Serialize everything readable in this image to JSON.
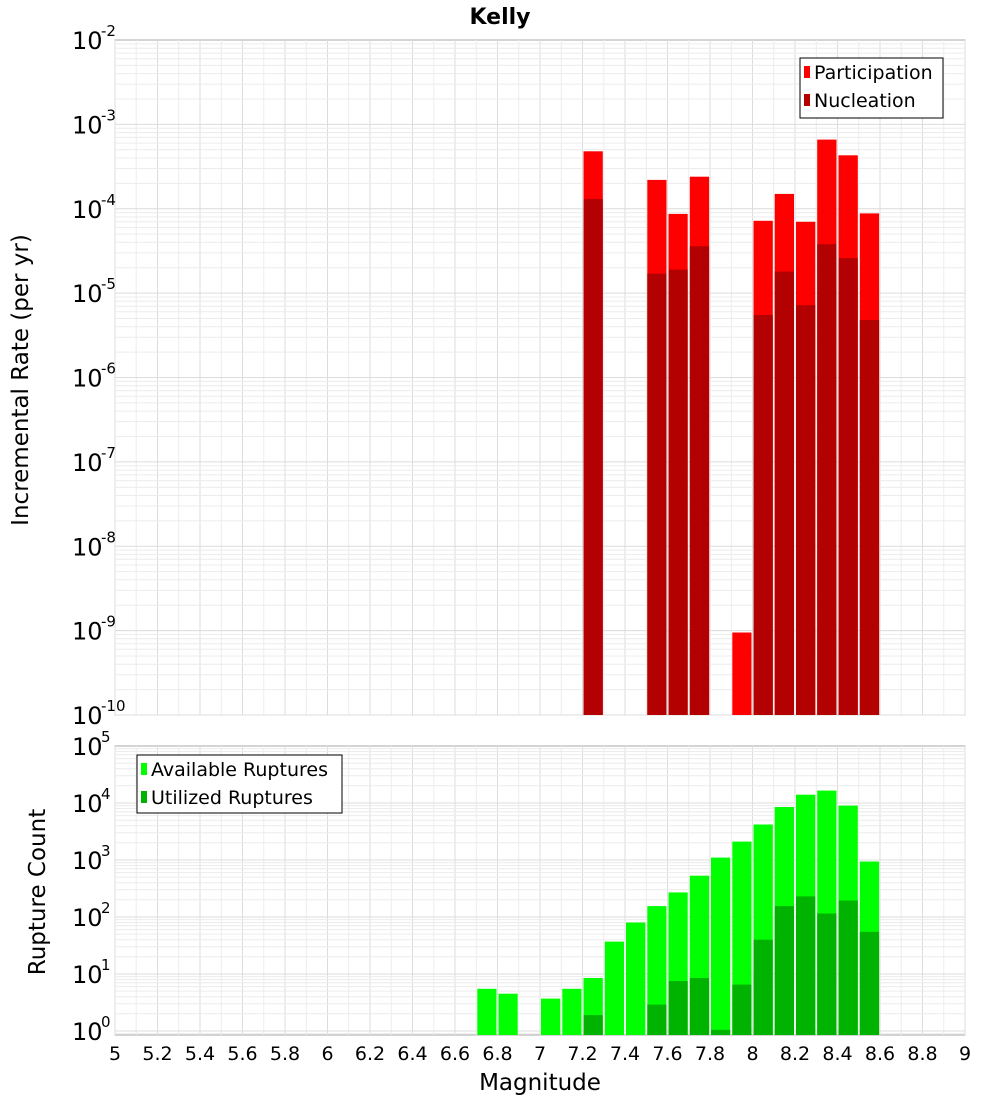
{
  "chart_data": [
    {
      "type": "bar",
      "title": "Kelly",
      "ylabel": "Incremental Rate (per yr)",
      "xlabel": "",
      "y_scale": "log",
      "ylim": [
        1e-10,
        0.01
      ],
      "xlim": [
        5,
        9
      ],
      "y_tick_exponents": [
        "-2",
        "-3",
        "-4",
        "-5",
        "-6",
        "-7",
        "-8",
        "-9",
        "-10"
      ],
      "bar_width": 0.1,
      "legend_position": "top-right",
      "series": [
        {
          "name": "Participation",
          "color": "#ff0000",
          "points": [
            {
              "x": 7.25,
              "y": 0.00048
            },
            {
              "x": 7.55,
              "y": 0.00022
            },
            {
              "x": 7.65,
              "y": 8.7e-05
            },
            {
              "x": 7.75,
              "y": 0.00024
            },
            {
              "x": 7.95,
              "y": 9.5e-10
            },
            {
              "x": 8.05,
              "y": 7.2e-05
            },
            {
              "x": 8.15,
              "y": 0.00015
            },
            {
              "x": 8.25,
              "y": 7e-05
            },
            {
              "x": 8.35,
              "y": 0.00066
            },
            {
              "x": 8.45,
              "y": 0.00043
            },
            {
              "x": 8.55,
              "y": 8.8e-05
            }
          ]
        },
        {
          "name": "Nucleation",
          "color": "#b30000",
          "points": [
            {
              "x": 7.25,
              "y": 0.00013
            },
            {
              "x": 7.55,
              "y": 1.7e-05
            },
            {
              "x": 7.65,
              "y": 1.9e-05
            },
            {
              "x": 7.75,
              "y": 3.6e-05
            },
            {
              "x": 8.05,
              "y": 5.5e-06
            },
            {
              "x": 8.15,
              "y": 1.8e-05
            },
            {
              "x": 8.25,
              "y": 7.2e-06
            },
            {
              "x": 8.35,
              "y": 3.8e-05
            },
            {
              "x": 8.45,
              "y": 2.6e-05
            },
            {
              "x": 8.55,
              "y": 4.8e-06
            }
          ]
        }
      ]
    },
    {
      "type": "bar",
      "title": "",
      "ylabel": "Rupture Count",
      "xlabel": "Magnitude",
      "y_scale": "log",
      "ylim": [
        0.85,
        100000
      ],
      "xlim": [
        5,
        9
      ],
      "y_tick_exponents": [
        "5",
        "4",
        "3",
        "2",
        "1",
        "0"
      ],
      "x_ticks": [
        "5",
        "5.2",
        "5.4",
        "5.6",
        "5.8",
        "6",
        "6.2",
        "6.4",
        "6.6",
        "6.8",
        "7",
        "7.2",
        "7.4",
        "7.6",
        "7.8",
        "8",
        "8.2",
        "8.4",
        "8.6",
        "8.8",
        "9"
      ],
      "bar_width": 0.1,
      "legend_position": "top-left",
      "series": [
        {
          "name": "Available Ruptures",
          "color": "#00ff00",
          "points": [
            {
              "x": 6.75,
              "y": 5.5
            },
            {
              "x": 6.85,
              "y": 4.5
            },
            {
              "x": 7.05,
              "y": 3.7
            },
            {
              "x": 7.15,
              "y": 5.5
            },
            {
              "x": 7.25,
              "y": 8.5
            },
            {
              "x": 7.35,
              "y": 37
            },
            {
              "x": 7.45,
              "y": 80
            },
            {
              "x": 7.55,
              "y": 155
            },
            {
              "x": 7.65,
              "y": 270
            },
            {
              "x": 7.75,
              "y": 530
            },
            {
              "x": 7.85,
              "y": 1100
            },
            {
              "x": 7.95,
              "y": 2100
            },
            {
              "x": 8.05,
              "y": 4200
            },
            {
              "x": 8.15,
              "y": 8500
            },
            {
              "x": 8.25,
              "y": 14000
            },
            {
              "x": 8.35,
              "y": 16500
            },
            {
              "x": 8.45,
              "y": 9000
            },
            {
              "x": 8.55,
              "y": 940
            }
          ]
        },
        {
          "name": "Utilized Ruptures",
          "color": "#00b300",
          "points": [
            {
              "x": 7.25,
              "y": 1.9
            },
            {
              "x": 7.55,
              "y": 2.9
            },
            {
              "x": 7.65,
              "y": 7.5
            },
            {
              "x": 7.75,
              "y": 8.5
            },
            {
              "x": 7.85,
              "y": 1.05
            },
            {
              "x": 7.95,
              "y": 6.5
            },
            {
              "x": 8.05,
              "y": 40
            },
            {
              "x": 8.15,
              "y": 155
            },
            {
              "x": 8.25,
              "y": 230
            },
            {
              "x": 8.35,
              "y": 115
            },
            {
              "x": 8.45,
              "y": 195
            },
            {
              "x": 8.55,
              "y": 55
            }
          ]
        }
      ]
    }
  ]
}
